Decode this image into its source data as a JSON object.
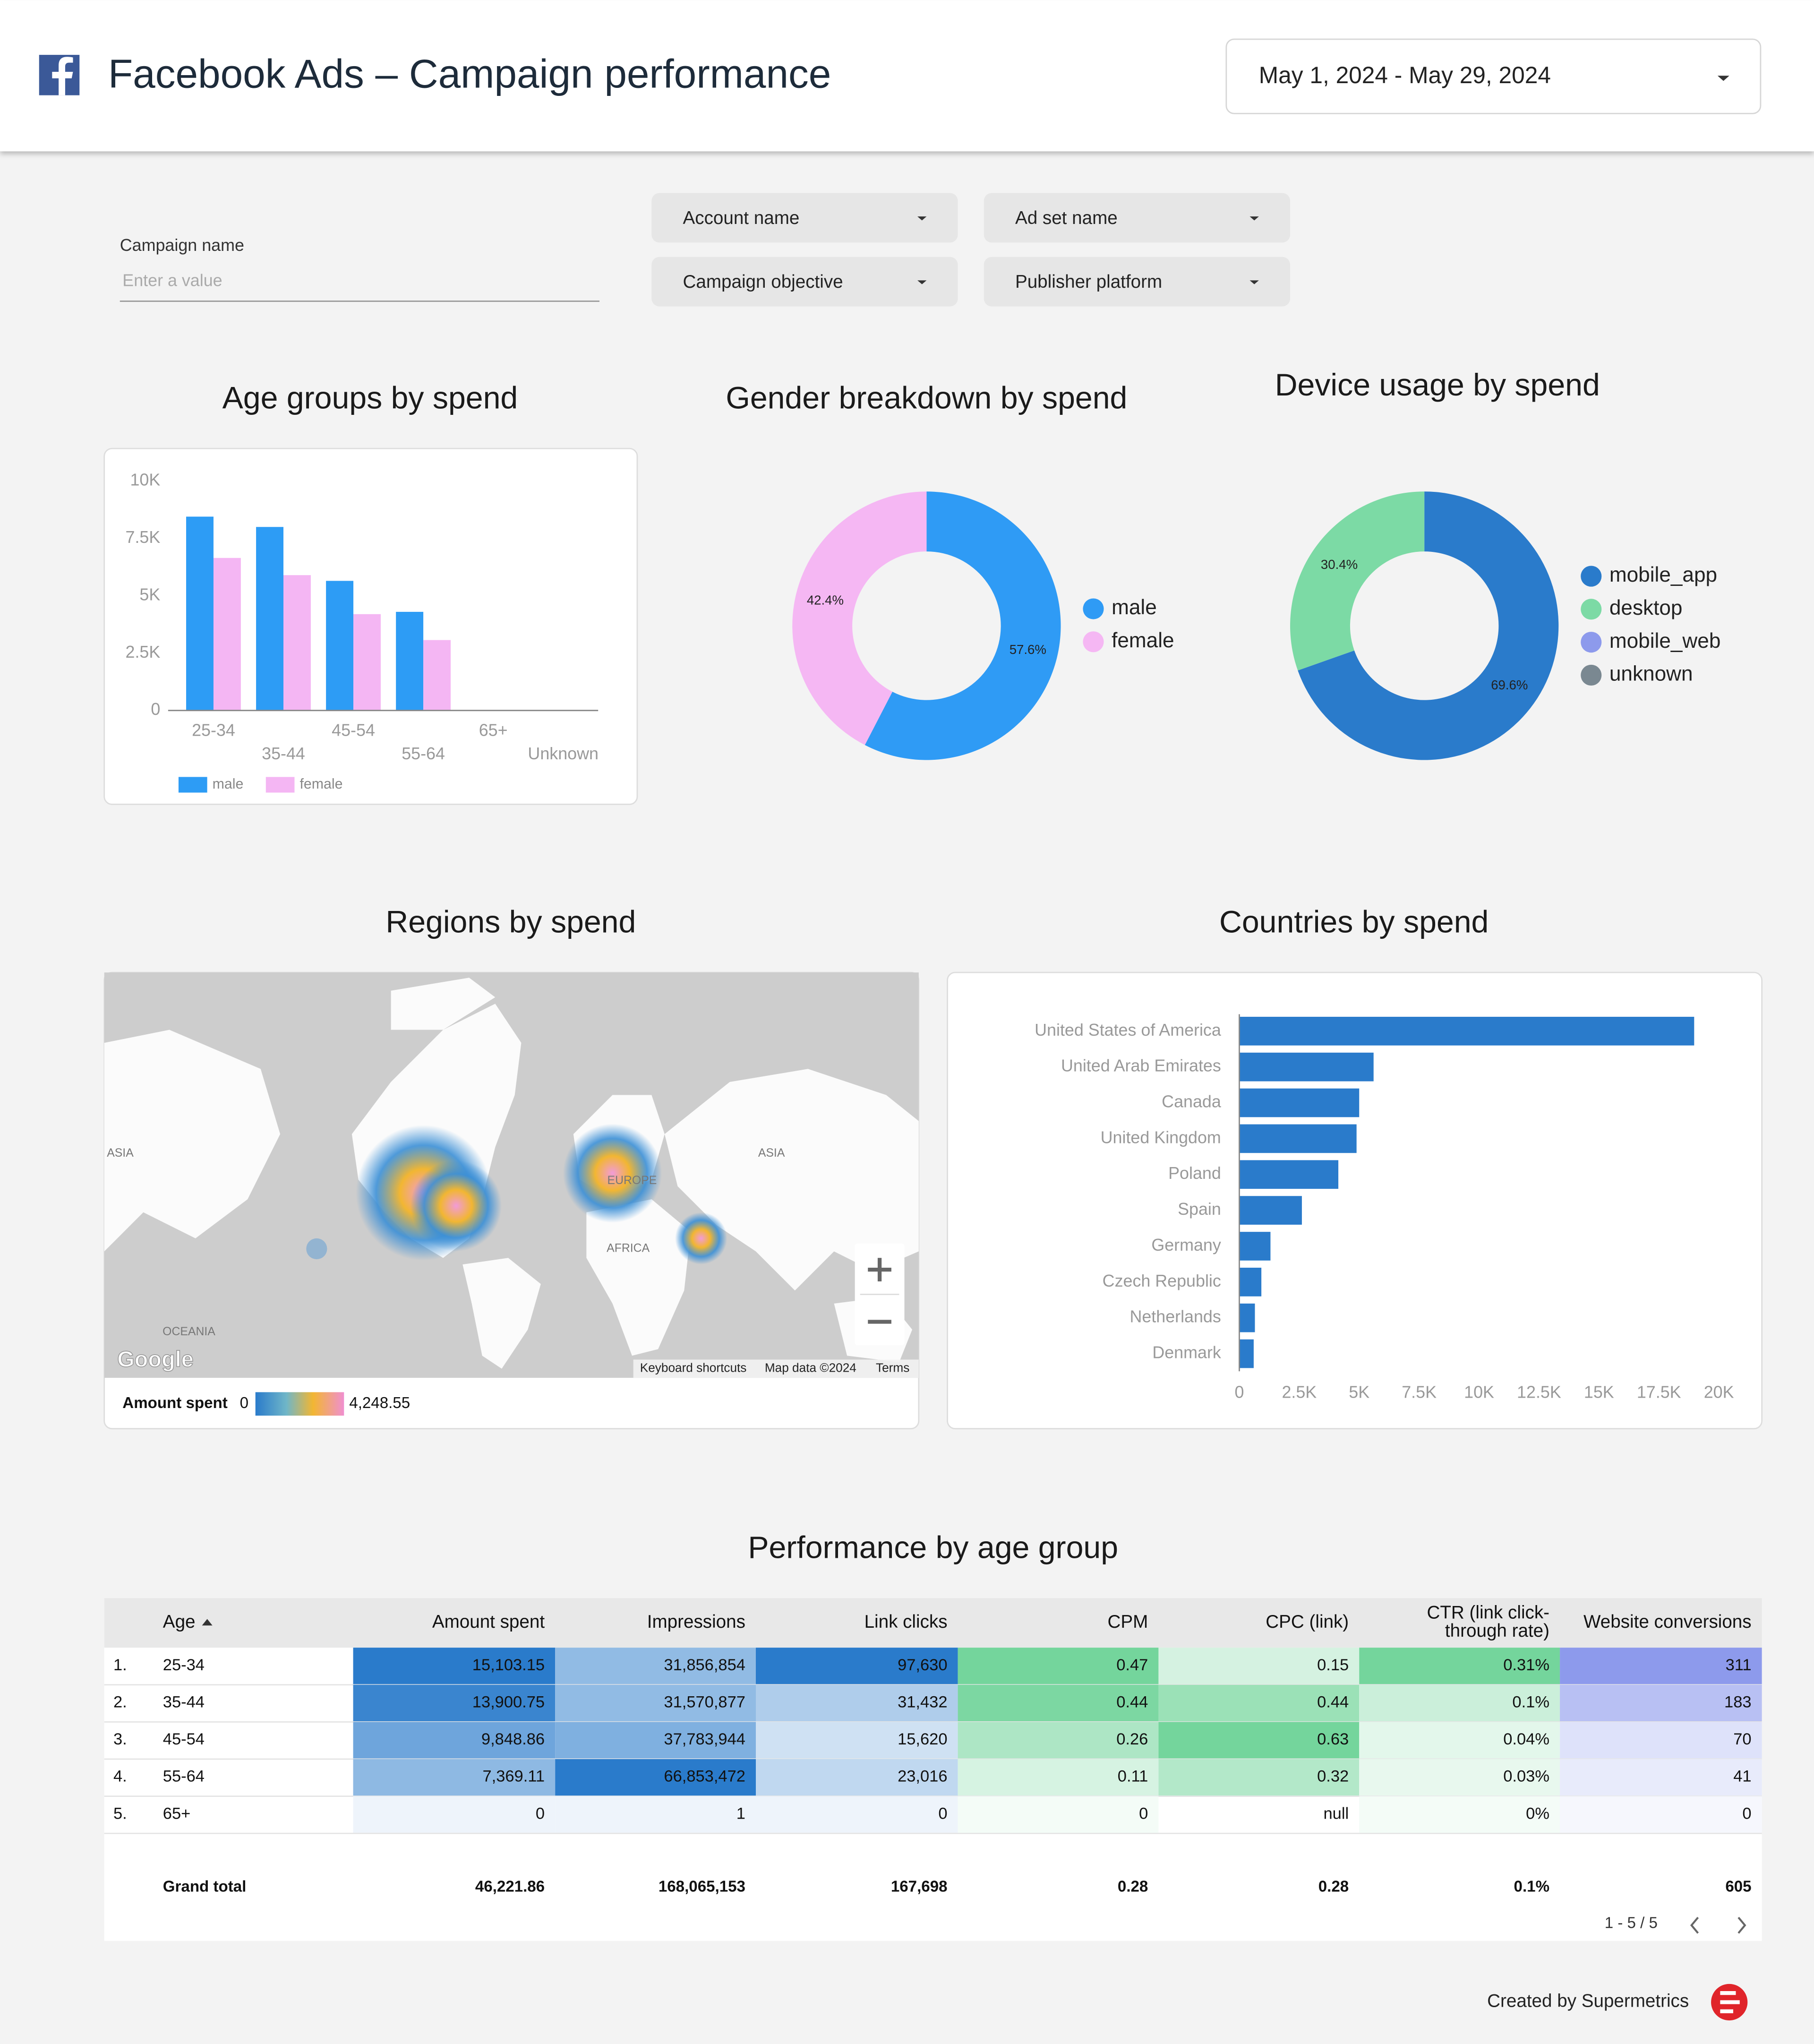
{
  "header": {
    "title": "Facebook Ads – Campaign performance",
    "date_range": "May 1, 2024 - May 29, 2024"
  },
  "filters": {
    "campaign_label": "Campaign name",
    "campaign_placeholder": "Enter a value",
    "dropdowns": [
      "Account name",
      "Ad set name",
      "Campaign objective",
      "Publisher platform"
    ]
  },
  "chart_data": [
    {
      "type": "bar",
      "title": "Age groups by spend",
      "categories": [
        "25-34",
        "35-44",
        "45-54",
        "55-64",
        "65+",
        "Unknown"
      ],
      "series": [
        {
          "name": "male",
          "color": "#2d9cf5",
          "values": [
            8450,
            8000,
            5650,
            4300,
            0,
            0
          ]
        },
        {
          "name": "female",
          "color": "#f4b6f3",
          "values": [
            6650,
            5900,
            4200,
            3070,
            0,
            0
          ]
        }
      ],
      "ylim": [
        0,
        10000
      ],
      "yticks": [
        0,
        {
          "value": 2500,
          "label": "2.5K"
        },
        {
          "value": 5000,
          "label": "5K"
        },
        {
          "value": 7500,
          "label": "7.5K"
        },
        {
          "value": 10000,
          "label": "10K"
        }
      ],
      "legend": "bottom"
    },
    {
      "type": "donut",
      "title": "Gender breakdown by spend",
      "categories": [
        "male",
        "female"
      ],
      "values": [
        57.6,
        42.4
      ],
      "value_labels": [
        "57.6%",
        "42.4%"
      ],
      "colors": [
        "#2f9bf5",
        "#f5b7f3"
      ],
      "legend": "right"
    },
    {
      "type": "donut",
      "title": "Device usage by spend",
      "categories": [
        "mobile_app",
        "desktop",
        "mobile_web",
        "unknown"
      ],
      "values": [
        69.6,
        30.4,
        0,
        0
      ],
      "value_labels": [
        "69.6%",
        "30.4%",
        null,
        null
      ],
      "colors": [
        "#2a7bcb",
        "#7cdaa5",
        "#8d9aec",
        "#7a8891"
      ],
      "legend": "right"
    },
    {
      "type": "bar",
      "orientation": "horizontal",
      "title": "Countries by spend",
      "categories": [
        "United States of America",
        "United Arab Emirates",
        "Canada",
        "United Kingdom",
        "Poland",
        "Spain",
        "Germany",
        "Czech Republic",
        "Netherlands",
        "Denmark"
      ],
      "values": [
        18970,
        5600,
        5000,
        4890,
        4130,
        2610,
        1300,
        920,
        650,
        600
      ],
      "color": "#2a7bcb",
      "xlim": [
        0,
        20000
      ],
      "xticks": [
        0,
        {
          "value": 2500,
          "label": "2.5K"
        },
        {
          "value": 5000,
          "label": "5K"
        },
        {
          "value": 7500,
          "label": "7.5K"
        },
        {
          "value": 10000,
          "label": "10K"
        },
        {
          "value": 12500,
          "label": "12.5K"
        },
        {
          "value": 15000,
          "label": "15K"
        },
        {
          "value": 17500,
          "label": "17.5K"
        },
        {
          "value": 20000,
          "label": "20K"
        }
      ]
    }
  ],
  "map": {
    "title": "Regions by spend",
    "labels": [
      "ASIA",
      "ASIA",
      "EUROPE",
      "AFRICA",
      "OCEANIA"
    ],
    "legend_title": "Amount spent",
    "legend_min": "0",
    "legend_max": "4,248.55",
    "attribution": [
      "Keyboard shortcuts",
      "Map data ©2024",
      "Terms"
    ],
    "logo": "Google"
  },
  "table": {
    "title": "Performance by age group",
    "columns": [
      "Age",
      "Amount spent",
      "Impressions",
      "Link clicks",
      "CPM",
      "CPC (link)",
      [
        "CTR (link click-",
        "through rate)"
      ],
      "Website conversions"
    ],
    "rows": [
      [
        "1.",
        "25-34",
        "15,103.15",
        "31,856,854",
        "97,630",
        "0.47",
        "0.15",
        "0.31%",
        "311"
      ],
      [
        "2.",
        "35-44",
        "13,900.75",
        "31,570,877",
        "31,432",
        "0.44",
        "0.44",
        "0.1%",
        "183"
      ],
      [
        "3.",
        "45-54",
        "9,848.86",
        "37,783,944",
        "15,620",
        "0.26",
        "0.63",
        "0.04%",
        "70"
      ],
      [
        "4.",
        "55-64",
        "7,369.11",
        "66,853,472",
        "23,016",
        "0.11",
        "0.32",
        "0.03%",
        "41"
      ],
      [
        "5.",
        "65+",
        "0",
        "1",
        "0",
        "0",
        "null",
        "0%",
        "0"
      ]
    ],
    "total": [
      "Grand total",
      "46,221.86",
      "168,065,153",
      "167,698",
      "0.28",
      "0.28",
      "0.1%",
      "605"
    ],
    "pagination": "1 - 5 / 5"
  },
  "footer": "Created by Supermetrics"
}
